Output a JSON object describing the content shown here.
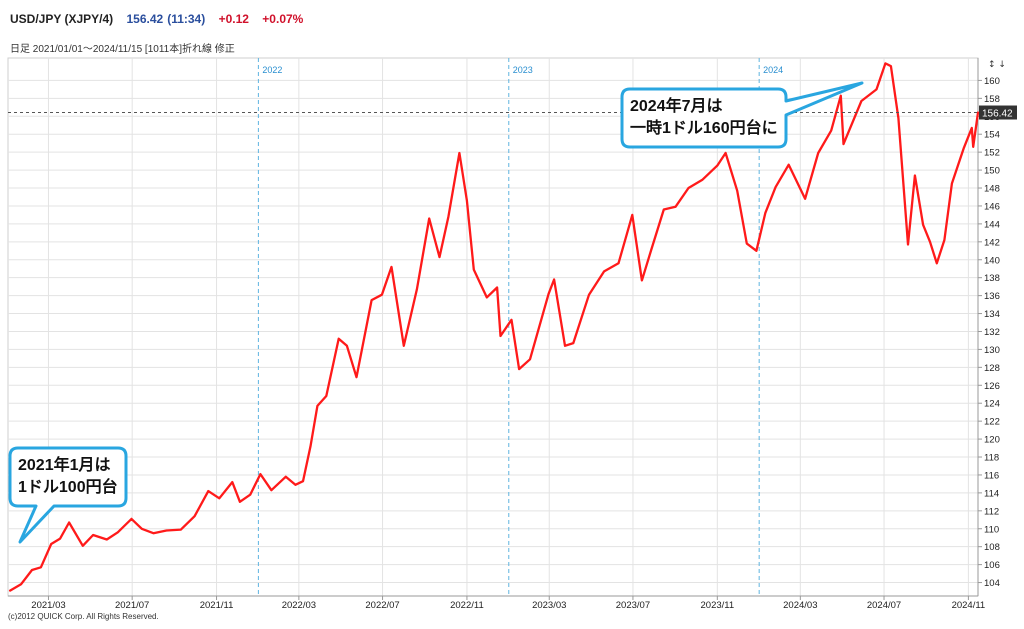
{
  "header": {
    "symbol": "USD/JPY (XJPY/4)",
    "last": "156.42",
    "time": "(11:34)",
    "change": "+0.12",
    "change_pct": "+0.07%"
  },
  "subheader": "日足  2021/01/01〜2024/11/15 [1011本]折れ線 修正",
  "copyright": "(c)2012 QUICK Corp. All Rights Reserved.",
  "scroll_arrows": "↕ ↓",
  "colors": {
    "line": "#ff1a1a",
    "callout_border": "#29a6e0",
    "year_line": "#5fb4e0",
    "grid": "#e3e3e3"
  },
  "annotations": {
    "jan2021": [
      "2021年1月は",
      "1ドル100円台"
    ],
    "jul2024": [
      "2024年7月は",
      "一時1ドル160円台に"
    ]
  },
  "chart_data": {
    "type": "line",
    "title": "USD/JPY",
    "xlabel": "",
    "ylabel": "",
    "ylim": [
      102.5,
      162.5
    ],
    "x_range": [
      "2021-01-01",
      "2024-11-15"
    ],
    "last_value": 156.42,
    "last_value_label": "156.42",
    "y_ticks": [
      104,
      106,
      108,
      110,
      112,
      114,
      116,
      118,
      120,
      122,
      124,
      126,
      128,
      130,
      132,
      134,
      136,
      138,
      140,
      142,
      144,
      146,
      148,
      150,
      152,
      154,
      156,
      158,
      160
    ],
    "x_ticks": [
      {
        "date": "2021-03-01",
        "label": "2021/03"
      },
      {
        "date": "2021-07-01",
        "label": "2021/07"
      },
      {
        "date": "2021-11-01",
        "label": "2021/11"
      },
      {
        "date": "2022-03-01",
        "label": "2022/03"
      },
      {
        "date": "2022-07-01",
        "label": "2022/07"
      },
      {
        "date": "2022-11-01",
        "label": "2022/11"
      },
      {
        "date": "2023-03-01",
        "label": "2023/03"
      },
      {
        "date": "2023-07-01",
        "label": "2023/07"
      },
      {
        "date": "2023-11-01",
        "label": "2023/11"
      },
      {
        "date": "2024-03-01",
        "label": "2024/03"
      },
      {
        "date": "2024-07-01",
        "label": "2024/07"
      },
      {
        "date": "2024-11-01",
        "label": "2024/11"
      }
    ],
    "year_markers": [
      {
        "date": "2022-01-01",
        "label": "2022"
      },
      {
        "date": "2023-01-01",
        "label": "2023"
      },
      {
        "date": "2024-01-01",
        "label": "2024"
      }
    ],
    "series": [
      {
        "name": "USD/JPY",
        "points": [
          [
            "2021-01-04",
            103.1
          ],
          [
            "2021-01-20",
            103.8
          ],
          [
            "2021-02-05",
            105.4
          ],
          [
            "2021-02-18",
            105.7
          ],
          [
            "2021-03-05",
            108.3
          ],
          [
            "2021-03-18",
            108.9
          ],
          [
            "2021-03-31",
            110.7
          ],
          [
            "2021-04-20",
            108.1
          ],
          [
            "2021-05-05",
            109.3
          ],
          [
            "2021-05-25",
            108.8
          ],
          [
            "2021-06-10",
            109.6
          ],
          [
            "2021-06-30",
            111.1
          ],
          [
            "2021-07-15",
            110.0
          ],
          [
            "2021-08-01",
            109.5
          ],
          [
            "2021-08-20",
            109.8
          ],
          [
            "2021-09-10",
            109.9
          ],
          [
            "2021-09-30",
            111.4
          ],
          [
            "2021-10-20",
            114.2
          ],
          [
            "2021-11-05",
            113.4
          ],
          [
            "2021-11-24",
            115.2
          ],
          [
            "2021-12-05",
            113.0
          ],
          [
            "2021-12-20",
            113.8
          ],
          [
            "2022-01-04",
            116.1
          ],
          [
            "2022-01-20",
            114.3
          ],
          [
            "2022-02-10",
            115.8
          ],
          [
            "2022-02-24",
            114.9
          ],
          [
            "2022-03-07",
            115.3
          ],
          [
            "2022-03-18",
            119.2
          ],
          [
            "2022-03-28",
            123.7
          ],
          [
            "2022-04-10",
            124.8
          ],
          [
            "2022-04-28",
            131.2
          ],
          [
            "2022-05-10",
            130.4
          ],
          [
            "2022-05-24",
            126.9
          ],
          [
            "2022-06-15",
            135.5
          ],
          [
            "2022-06-30",
            136.1
          ],
          [
            "2022-07-14",
            139.2
          ],
          [
            "2022-08-01",
            130.4
          ],
          [
            "2022-08-20",
            136.7
          ],
          [
            "2022-09-07",
            144.6
          ],
          [
            "2022-09-22",
            140.3
          ],
          [
            "2022-10-05",
            144.8
          ],
          [
            "2022-10-21",
            151.9
          ],
          [
            "2022-11-01",
            146.6
          ],
          [
            "2022-11-11",
            138.9
          ],
          [
            "2022-11-30",
            135.8
          ],
          [
            "2022-12-15",
            136.9
          ],
          [
            "2022-12-20",
            131.5
          ],
          [
            "2023-01-05",
            133.3
          ],
          [
            "2023-01-16",
            127.8
          ],
          [
            "2023-02-01",
            128.9
          ],
          [
            "2023-02-28",
            136.2
          ],
          [
            "2023-03-08",
            137.8
          ],
          [
            "2023-03-24",
            130.4
          ],
          [
            "2023-04-05",
            130.7
          ],
          [
            "2023-04-28",
            136.1
          ],
          [
            "2023-05-20",
            138.7
          ],
          [
            "2023-06-10",
            139.6
          ],
          [
            "2023-06-30",
            145.0
          ],
          [
            "2023-07-14",
            137.7
          ],
          [
            "2023-07-28",
            141.2
          ],
          [
            "2023-08-15",
            145.6
          ],
          [
            "2023-09-01",
            145.9
          ],
          [
            "2023-09-20",
            148.0
          ],
          [
            "2023-10-10",
            148.9
          ],
          [
            "2023-11-01",
            150.5
          ],
          [
            "2023-11-13",
            151.9
          ],
          [
            "2023-11-30",
            147.7
          ],
          [
            "2023-12-14",
            141.8
          ],
          [
            "2023-12-28",
            141.0
          ],
          [
            "2024-01-10",
            145.2
          ],
          [
            "2024-01-25",
            148.1
          ],
          [
            "2024-02-13",
            150.6
          ],
          [
            "2024-03-08",
            146.8
          ],
          [
            "2024-03-27",
            151.9
          ],
          [
            "2024-04-15",
            154.4
          ],
          [
            "2024-04-29",
            158.3
          ],
          [
            "2024-05-03",
            152.9
          ],
          [
            "2024-05-29",
            157.7
          ],
          [
            "2024-06-20",
            159.0
          ],
          [
            "2024-07-03",
            161.9
          ],
          [
            "2024-07-11",
            161.6
          ],
          [
            "2024-07-22",
            155.8
          ],
          [
            "2024-08-05",
            141.7
          ],
          [
            "2024-08-15",
            149.4
          ],
          [
            "2024-08-27",
            143.9
          ],
          [
            "2024-09-06",
            142.0
          ],
          [
            "2024-09-16",
            139.6
          ],
          [
            "2024-09-27",
            142.2
          ],
          [
            "2024-10-08",
            148.5
          ],
          [
            "2024-10-25",
            152.4
          ],
          [
            "2024-11-06",
            154.7
          ],
          [
            "2024-11-08",
            152.6
          ],
          [
            "2024-11-15",
            156.42
          ]
        ]
      }
    ]
  }
}
